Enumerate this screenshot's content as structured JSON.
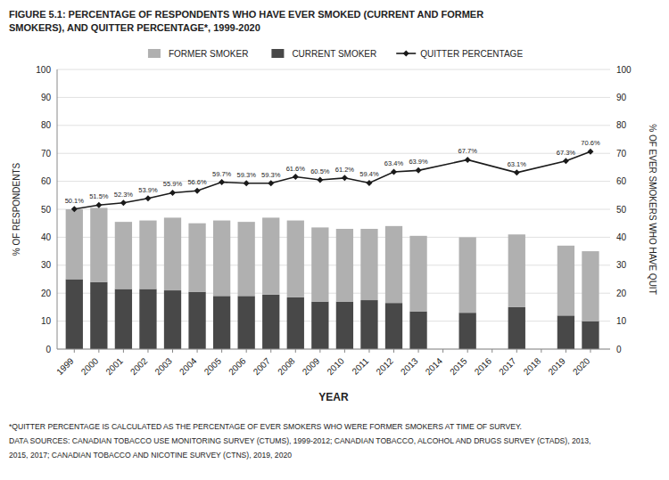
{
  "chart_data": {
    "type": "bar",
    "title": [
      "FIGURE 5.1: PERCENTAGE OF RESPONDENTS WHO HAVE EVER SMOKED (CURRENT AND FORMER",
      "SMOKERS), AND QUITTER PERCENTAGE*, 1999-2020"
    ],
    "x": [
      1999,
      2000,
      2001,
      2002,
      2003,
      2004,
      2005,
      2006,
      2007,
      2008,
      2009,
      2010,
      2011,
      2012,
      2013,
      2015,
      2017,
      2019,
      2020
    ],
    "series": [
      {
        "name": "CURRENT SMOKER",
        "color": "#484848",
        "values": [
          25.0,
          24.0,
          21.5,
          21.5,
          21.0,
          20.5,
          19.0,
          19.0,
          19.5,
          18.5,
          17.0,
          17.0,
          17.5,
          16.5,
          13.5,
          13.0,
          15.0,
          12.0,
          10.0
        ]
      },
      {
        "name": "FORMER SMOKER",
        "color": "#b0b0b0",
        "values": [
          25.0,
          26.5,
          24.0,
          24.5,
          26.0,
          24.5,
          27.0,
          26.5,
          27.5,
          27.5,
          26.5,
          26.0,
          25.5,
          27.5,
          27.0,
          27.0,
          26.0,
          25.0,
          25.0
        ]
      },
      {
        "name": "QUITTER PERCENTAGE",
        "type": "line",
        "axis": "y2",
        "color": "#1a1a1a",
        "marker": "diamond",
        "values": [
          50.1,
          51.5,
          52.3,
          53.9,
          55.9,
          56.6,
          59.7,
          59.3,
          59.3,
          61.6,
          60.5,
          61.2,
          59.4,
          63.4,
          63.9,
          67.7,
          63.1,
          67.3,
          70.6
        ],
        "value_labels": [
          "50.1%",
          "51.5%",
          "52.3%",
          "53.9%",
          "55.9%",
          "56.6%",
          "59.7%",
          "59.3%",
          "59.3%",
          "61.6%",
          "60.5%",
          "61.2%",
          "59.4%",
          "63.4%",
          "63.9%",
          "67.7%",
          "63.1%",
          "67.3%",
          "70.6%"
        ]
      }
    ],
    "stacked": true,
    "data_labels": true,
    "xlabel": "YEAR",
    "ylabel": "% OF RESPONDENTS",
    "y2label": "% OF EVER SMOKERS WHO HAVE QUIT",
    "xlim": [
      1998.3,
      2020.8
    ],
    "xticks": [
      1999,
      2000,
      2001,
      2002,
      2003,
      2004,
      2005,
      2006,
      2007,
      2008,
      2009,
      2010,
      2011,
      2012,
      2013,
      2014,
      2015,
      2016,
      2017,
      2018,
      2019,
      2020
    ],
    "ylim": [
      0,
      100
    ],
    "yticks": [
      0,
      10,
      20,
      30,
      40,
      50,
      60,
      70,
      80,
      90,
      100
    ],
    "y2lim": [
      0,
      100
    ],
    "y2ticks": [
      0,
      10,
      20,
      30,
      40,
      50,
      60,
      70,
      80,
      90,
      100
    ],
    "grid": true,
    "legend": "top",
    "annotations": [
      "*QUITTER PERCENTAGE IS CALCULATED AS THE PERCENTAGE OF EVER SMOKERS WHO WERE FORMER SMOKERS AT TIME OF SURVEY.",
      "DATA SOURCES: CANADIAN TOBACCO USE MONITORING SURVEY (CTUMS), 1999-2012; CANADIAN TOBACCO, ALCOHOL AND DRUGS SURVEY (CTADS), 2013,",
      "2015, 2017; CANADIAN TOBACCO AND NICOTINE SURVEY (CTNS), 2019, 2020"
    ]
  }
}
